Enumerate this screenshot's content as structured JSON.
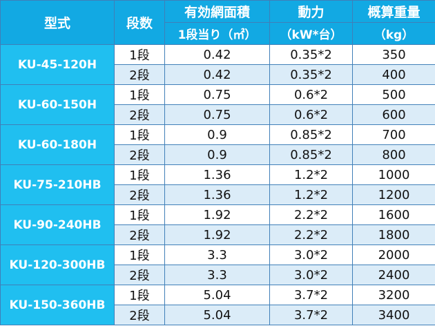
{
  "header": {
    "model": "型式",
    "stages": "段数",
    "area": [
      "有効網面積",
      "1段当り（㎡）"
    ],
    "power": [
      "動力",
      "（kW*台）"
    ],
    "weight": [
      "概算重量",
      "（kg）"
    ]
  },
  "groups": [
    {
      "model": "KU-45-120H",
      "rows": [
        [
          "1段",
          "0.42",
          "0.35*2",
          "350"
        ],
        [
          "2段",
          "0.42",
          "0.35*2",
          "400"
        ]
      ]
    },
    {
      "model": "KU-60-150H",
      "rows": [
        [
          "1段",
          "0.75",
          "0.6*2",
          "500"
        ],
        [
          "2段",
          "0.75",
          "0.6*2",
          "600"
        ]
      ]
    },
    {
      "model": "KU-60-180H",
      "rows": [
        [
          "1段",
          "0.9",
          "0.85*2",
          "700"
        ],
        [
          "2段",
          "0.9",
          "0.85*2",
          "800"
        ]
      ]
    },
    {
      "model": "KU-75-210HB",
      "rows": [
        [
          "1段",
          "1.36",
          "1.2*2",
          "1000"
        ],
        [
          "2段",
          "1.36",
          "1.2*2",
          "1200"
        ]
      ]
    },
    {
      "model": "KU-90-240HB",
      "rows": [
        [
          "1段",
          "1.92",
          "2.2*2",
          "1600"
        ],
        [
          "2段",
          "1.92",
          "2.2*2",
          "1800"
        ]
      ]
    },
    {
      "model": "KU-120-300HB",
      "rows": [
        [
          "1段",
          "3.3",
          "3.0*2",
          "2000"
        ],
        [
          "2段",
          "3.3",
          "3.0*2",
          "2400"
        ]
      ]
    },
    {
      "model": "KU-150-360HB",
      "rows": [
        [
          "1段",
          "5.04",
          "3.7*2",
          "3200"
        ],
        [
          "2段",
          "5.04",
          "3.7*2",
          "3400"
        ]
      ]
    }
  ]
}
